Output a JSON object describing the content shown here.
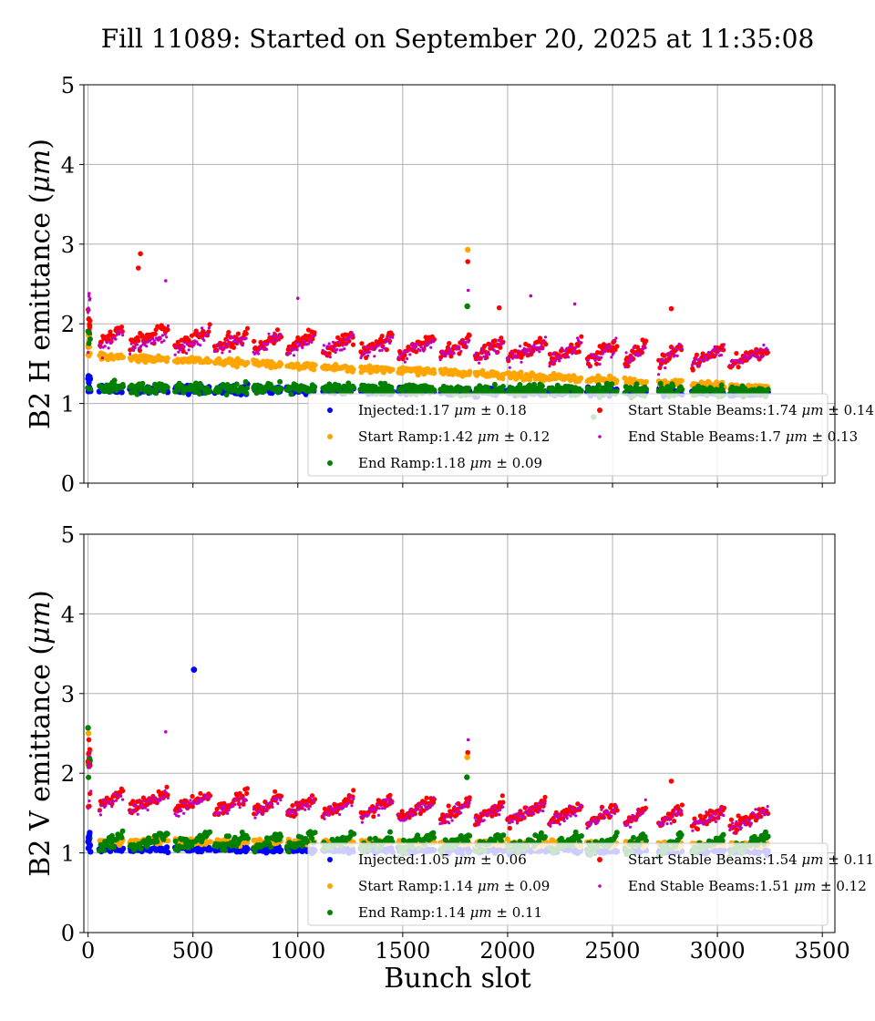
{
  "figure": {
    "title": "Fill 11089: Started on September 20, 2025 at 11:35:08",
    "xlabel": "Bunch slot"
  },
  "chart_data": [
    {
      "type": "scatter",
      "ylabel": "B2 H emittance (μm)",
      "ylabel_plain": "B2 H emittance (",
      "ylabel_unit": "μm",
      "ylabel_close": ")",
      "xlim": [
        -20,
        3560
      ],
      "ylim": [
        0,
        5
      ],
      "xticks": [
        0,
        500,
        1000,
        1500,
        2000,
        2500,
        3000,
        3500
      ],
      "yticks": [
        0,
        1,
        2,
        3,
        4,
        5
      ],
      "show_x_tick_labels": false,
      "grid": true,
      "legend_location": "lower-right",
      "series": [
        {
          "name": "Injected:1.17 μm ± 0.18",
          "label_pre": "Injected:1.17 ",
          "label_unit": "μm",
          "label_post": " ± 0.18",
          "color": "#0000ff",
          "mean": 1.17,
          "std": 0.18
        },
        {
          "name": "Start Ramp:1.42 μm ± 0.12",
          "label_pre": "Start Ramp:1.42 ",
          "label_unit": "μm",
          "label_post": " ± 0.12",
          "color": "#ffa500",
          "mean": 1.42,
          "std": 0.12
        },
        {
          "name": "End Ramp:1.18 μm ± 0.09",
          "label_pre": "End Ramp:1.18 ",
          "label_unit": "μm",
          "label_post": " ± 0.09",
          "color": "#008000",
          "mean": 1.18,
          "std": 0.09
        },
        {
          "name": "Start Stable Beams:1.74 μm ± 0.14",
          "label_pre": "Start Stable Beams:1.74 ",
          "label_unit": "μm",
          "label_post": " ± 0.14",
          "color": "#ff0000",
          "mean": 1.74,
          "std": 0.14
        },
        {
          "name": "End Stable Beams:1.7 μm ± 0.13",
          "label_pre": "End Stable Beams:1.7 ",
          "label_unit": "μm",
          "label_post": " ± 0.13",
          "color": "#bf00bf",
          "mean": 1.7,
          "std": 0.13
        }
      ],
      "bunch_trains": [
        {
          "start": 0,
          "end": 12
        },
        {
          "start": 55,
          "end": 165
        },
        {
          "start": 200,
          "end": 380
        },
        {
          "start": 415,
          "end": 580
        },
        {
          "start": 605,
          "end": 760
        },
        {
          "start": 790,
          "end": 920
        },
        {
          "start": 950,
          "end": 1080
        },
        {
          "start": 1120,
          "end": 1265
        },
        {
          "start": 1300,
          "end": 1450
        },
        {
          "start": 1480,
          "end": 1650
        },
        {
          "start": 1680,
          "end": 1820
        },
        {
          "start": 1845,
          "end": 1980
        },
        {
          "start": 2000,
          "end": 2180
        },
        {
          "start": 2200,
          "end": 2350
        },
        {
          "start": 2380,
          "end": 2520
        },
        {
          "start": 2560,
          "end": 2660
        },
        {
          "start": 2720,
          "end": 2830
        },
        {
          "start": 2880,
          "end": 3030
        },
        {
          "start": 3060,
          "end": 3240
        }
      ],
      "trend": {
        "start_ramp": [
          1.6,
          1.2
        ],
        "start_stable": [
          1.85,
          1.58
        ],
        "end_stable": [
          1.8,
          1.57
        ],
        "injected": [
          1.18,
          1.13
        ],
        "end_ramp": [
          1.2,
          1.15
        ]
      },
      "outliers": [
        {
          "series": 3,
          "x": 250,
          "y": 2.88
        },
        {
          "series": 3,
          "x": 240,
          "y": 2.7
        },
        {
          "series": 1,
          "x": 1810,
          "y": 2.93
        },
        {
          "series": 3,
          "x": 1810,
          "y": 2.78
        },
        {
          "series": 4,
          "x": 1812,
          "y": 2.42
        },
        {
          "series": 2,
          "x": 1808,
          "y": 2.22
        },
        {
          "series": 4,
          "x": 5,
          "y": 2.38
        },
        {
          "series": 4,
          "x": 370,
          "y": 2.54
        },
        {
          "series": 4,
          "x": 1000,
          "y": 2.32
        },
        {
          "series": 3,
          "x": 1960,
          "y": 2.2
        },
        {
          "series": 4,
          "x": 2110,
          "y": 2.35
        },
        {
          "series": 4,
          "x": 2320,
          "y": 2.25
        },
        {
          "series": 2,
          "x": 2410,
          "y": 0.83
        },
        {
          "series": 3,
          "x": 2780,
          "y": 2.19
        }
      ]
    },
    {
      "type": "scatter",
      "ylabel": "B2 V emittance (μm)",
      "ylabel_plain": "B2 V emittance (",
      "ylabel_unit": "μm",
      "ylabel_close": ")",
      "xlabel": "Bunch slot",
      "xlim": [
        -20,
        3560
      ],
      "ylim": [
        0,
        5
      ],
      "xticks": [
        0,
        500,
        1000,
        1500,
        2000,
        2500,
        3000,
        3500
      ],
      "yticks": [
        0,
        1,
        2,
        3,
        4,
        5
      ],
      "show_x_tick_labels": true,
      "grid": true,
      "legend_location": "lower-right",
      "series": [
        {
          "name": "Injected:1.05 μm ± 0.06",
          "label_pre": "Injected:1.05 ",
          "label_unit": "μm",
          "label_post": " ± 0.06",
          "color": "#0000ff",
          "mean": 1.05,
          "std": 0.06
        },
        {
          "name": "Start Ramp:1.14 μm ± 0.09",
          "label_pre": "Start Ramp:1.14 ",
          "label_unit": "μm",
          "label_post": " ± 0.09",
          "color": "#ffa500",
          "mean": 1.14,
          "std": 0.09
        },
        {
          "name": "End Ramp:1.14 μm ± 0.11",
          "label_pre": "End Ramp:1.14 ",
          "label_unit": "μm",
          "label_post": " ± 0.11",
          "color": "#008000",
          "mean": 1.14,
          "std": 0.11
        },
        {
          "name": "Start Stable Beams:1.54 μm ± 0.11",
          "label_pre": "Start Stable Beams:1.54 ",
          "label_unit": "μm",
          "label_post": " ± 0.11",
          "color": "#ff0000",
          "mean": 1.54,
          "std": 0.11
        },
        {
          "name": "End Stable Beams:1.51 μm ± 0.12",
          "label_pre": "End Stable Beams:1.51 ",
          "label_unit": "μm",
          "label_post": " ± 0.12",
          "color": "#bf00bf",
          "mean": 1.51,
          "std": 0.12
        }
      ],
      "bunch_trains": [
        {
          "start": 0,
          "end": 12
        },
        {
          "start": 55,
          "end": 165
        },
        {
          "start": 200,
          "end": 380
        },
        {
          "start": 415,
          "end": 580
        },
        {
          "start": 605,
          "end": 760
        },
        {
          "start": 790,
          "end": 920
        },
        {
          "start": 950,
          "end": 1080
        },
        {
          "start": 1120,
          "end": 1265
        },
        {
          "start": 1300,
          "end": 1450
        },
        {
          "start": 1480,
          "end": 1650
        },
        {
          "start": 1680,
          "end": 1820
        },
        {
          "start": 1845,
          "end": 1980
        },
        {
          "start": 2000,
          "end": 2180
        },
        {
          "start": 2200,
          "end": 2350
        },
        {
          "start": 2380,
          "end": 2520
        },
        {
          "start": 2560,
          "end": 2660
        },
        {
          "start": 2720,
          "end": 2830
        },
        {
          "start": 2880,
          "end": 3030
        },
        {
          "start": 3060,
          "end": 3240
        }
      ],
      "trend": {
        "start_ramp": [
          1.15,
          1.1
        ],
        "start_stable": [
          1.68,
          1.42
        ],
        "end_stable": [
          1.65,
          1.4
        ],
        "injected": [
          1.05,
          1.03
        ],
        "end_ramp": [
          1.15,
          1.1
        ]
      },
      "outliers": [
        {
          "series": 0,
          "x": 505,
          "y": 3.3
        },
        {
          "series": 2,
          "x": 0,
          "y": 2.57
        },
        {
          "series": 1,
          "x": 2,
          "y": 2.5
        },
        {
          "series": 3,
          "x": 4,
          "y": 2.42
        },
        {
          "series": 4,
          "x": 370,
          "y": 2.52
        },
        {
          "series": 4,
          "x": 1812,
          "y": 2.42
        },
        {
          "series": 3,
          "x": 1810,
          "y": 2.26
        },
        {
          "series": 1,
          "x": 1808,
          "y": 2.2
        },
        {
          "series": 2,
          "x": 1806,
          "y": 1.95
        },
        {
          "series": 3,
          "x": 2780,
          "y": 1.9
        }
      ]
    }
  ]
}
